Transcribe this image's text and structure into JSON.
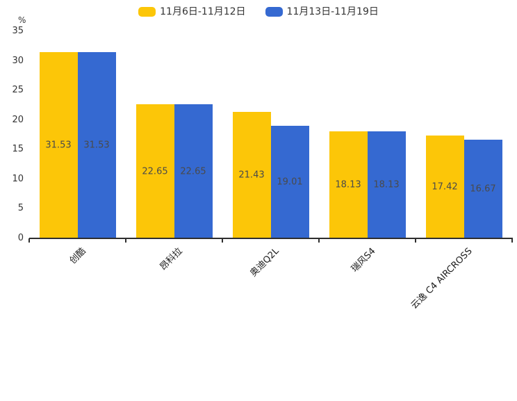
{
  "chart_data": {
    "type": "bar",
    "title": "",
    "unit_label": "%",
    "categories": [
      "创酷",
      "昂科拉",
      "奥迪Q2L",
      "瑞风S4",
      "云逸 C4 AIRCROSS"
    ],
    "series": [
      {
        "name": "11月6日-11月12日",
        "color": "#FCC608",
        "values": [
          31.53,
          22.65,
          21.43,
          18.13,
          17.42
        ]
      },
      {
        "name": "11月13日-11月19日",
        "color": "#3569D1",
        "values": [
          31.53,
          22.65,
          19.01,
          18.13,
          16.67
        ]
      }
    ],
    "ylim": [
      0,
      35
    ],
    "yticks": [
      0,
      5,
      10,
      15,
      20,
      25,
      30,
      35
    ],
    "grid": false,
    "legend_position": "top",
    "value_label_position": "inside-center",
    "value_label_color": "#4a4a4a",
    "axis_color": "#2e2e2e",
    "background": "#ffffff"
  }
}
